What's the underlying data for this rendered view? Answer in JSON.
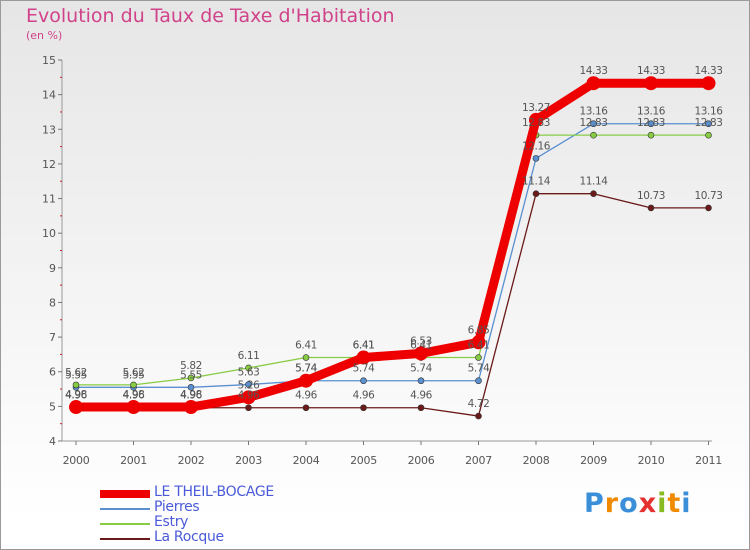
{
  "title": "Evolution du Taux de Taxe d'Habitation",
  "subtitle": "(en %)",
  "logo_text": "Proxiti",
  "chart_data": {
    "type": "line",
    "title": "Evolution du Taux de Taxe d'Habitation",
    "ylabel": "(en %)",
    "ylim": [
      4,
      15
    ],
    "yticks": [
      "4",
      "5",
      "6",
      "7",
      "8",
      "9",
      "10",
      "11",
      "12",
      "13",
      "14",
      "15"
    ],
    "categories": [
      "2000",
      "2001",
      "2002",
      "2003",
      "2004",
      "2005",
      "2006",
      "2007",
      "2008",
      "2009",
      "2010",
      "2011"
    ],
    "series": [
      {
        "name": "LE THEIL-BOCAGE",
        "color": "#ee0000",
        "values": [
          4.98,
          4.98,
          4.98,
          5.26,
          5.74,
          6.41,
          6.53,
          6.85,
          13.27,
          14.33,
          14.33,
          14.33
        ],
        "labels": [
          "4.98",
          "4.98",
          "4.98",
          "5.26",
          "5.74",
          "6.41",
          "6.53",
          "6.85",
          "13.27",
          "14.33",
          "14.33",
          "14.33"
        ]
      },
      {
        "name": "Pierres",
        "color": "#5a8fd0",
        "values": [
          5.55,
          5.55,
          5.55,
          5.63,
          5.74,
          5.74,
          5.74,
          5.74,
          12.16,
          13.16,
          13.16,
          13.16
        ],
        "labels": [
          "5.55",
          "5.55",
          "5.55",
          "5.63",
          "5.74",
          "5.74",
          "5.74",
          "5.74",
          "12.16",
          "13.16",
          "13.16",
          "13.16"
        ]
      },
      {
        "name": "Estry",
        "color": "#88cc44",
        "values": [
          5.62,
          5.62,
          5.82,
          6.11,
          6.41,
          6.41,
          6.41,
          6.41,
          12.83,
          12.83,
          12.83,
          12.83
        ],
        "labels": [
          "5.62",
          "5.62",
          "5.82",
          "6.11",
          "6.41",
          "6.41",
          "6.41",
          "6.41",
          "12.83",
          "12.83",
          "12.83",
          "12.83"
        ]
      },
      {
        "name": "La Rocque",
        "color": "#6b1a1a",
        "values": [
          4.96,
          4.96,
          4.96,
          4.96,
          4.96,
          4.96,
          4.96,
          4.72,
          11.14,
          11.14,
          10.73,
          10.73
        ],
        "labels": [
          "4.96",
          "4.96",
          "4.96",
          "4.96",
          "4.96",
          "4.96",
          "4.96",
          "4.72",
          "11.14",
          "11.14",
          "10.73",
          "10.73"
        ]
      }
    ],
    "legend_position": "bottom-left",
    "grid": false
  }
}
